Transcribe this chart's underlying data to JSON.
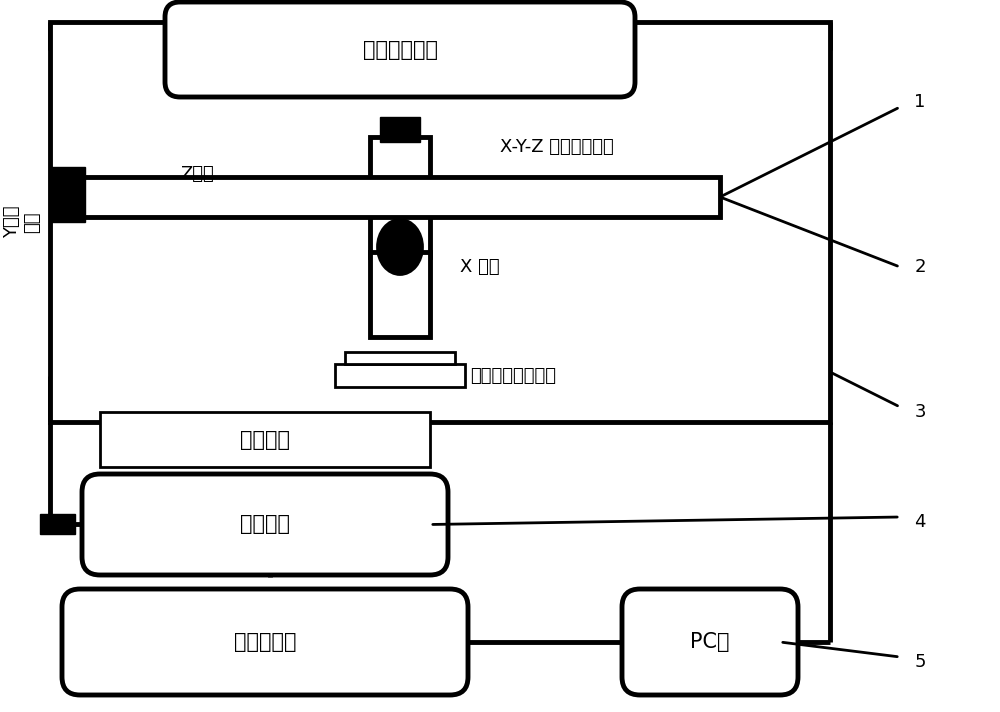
{
  "bg_color": "#ffffff",
  "line_color": "#000000",
  "lw_thin": 2.0,
  "lw_thick": 3.5,
  "font_size_large": 15,
  "font_size_med": 13,
  "font_size_num": 13,
  "labels": {
    "stepper_motor": "步进电机控制",
    "xyz_stage": "X-Y-Z 三轴扫描台架",
    "z_direction": "Z方向",
    "x_direction": "X 方向",
    "dual_sensor": "双模式检测传感器",
    "workpiece": "被检工件",
    "calibration": "校准装置",
    "impedance": "阻抗分析仪",
    "pc": "PC机",
    "y_line1": "Y方向",
    "y_line2": "回转"
  },
  "numbers": [
    "1",
    "2",
    "3",
    "4",
    "5"
  ]
}
